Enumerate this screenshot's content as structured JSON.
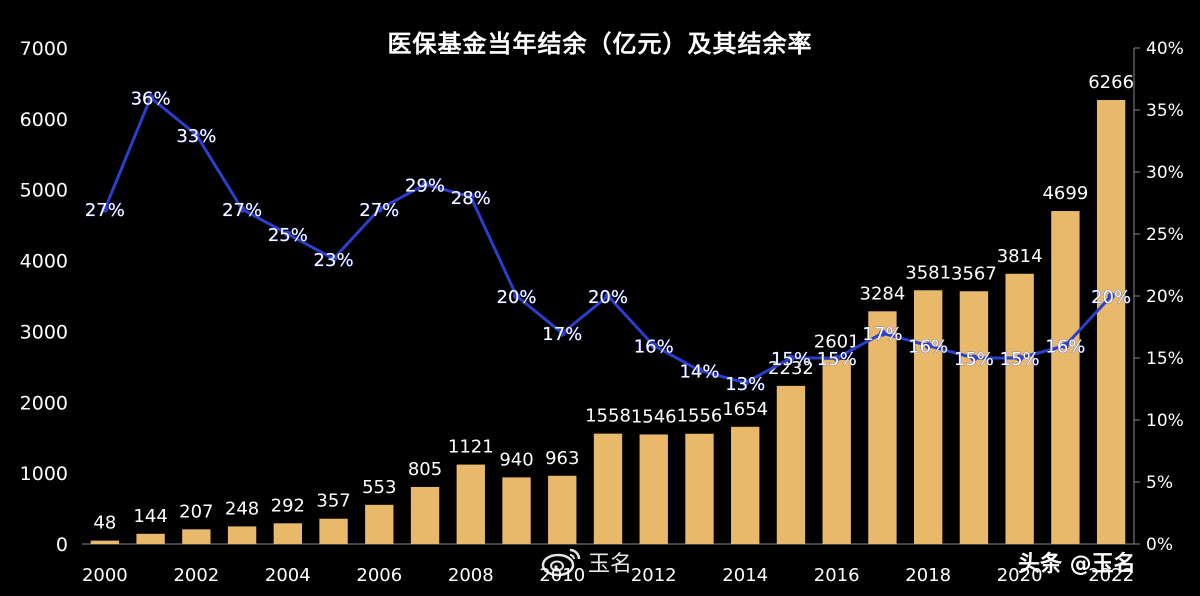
{
  "chart_data": {
    "type": "bar",
    "title": "医保基金当年结余（亿元）及其结余率",
    "categories": [
      "2000",
      "2001",
      "2002",
      "2003",
      "2004",
      "2005",
      "2006",
      "2007",
      "2008",
      "2009",
      "2010",
      "2011",
      "2012",
      "2013",
      "2014",
      "2015",
      "2016",
      "2017",
      "2018",
      "2019",
      "2020",
      "2021",
      "2022"
    ],
    "x_tick_labels": [
      "2000",
      "2002",
      "2004",
      "2006",
      "2008",
      "2010",
      "2012",
      "2014",
      "2016",
      "2018",
      "2020",
      "2022"
    ],
    "series": [
      {
        "type": "bar",
        "axis": "left",
        "values": [
          48,
          144,
          207,
          248,
          292,
          357,
          553,
          805,
          1121,
          940,
          963,
          1558,
          1546,
          1556,
          1654,
          2232,
          2601,
          3284,
          3581,
          3567,
          3814,
          4699,
          6266
        ],
        "labels": [
          "48",
          "144",
          "207",
          "248",
          "292",
          "357",
          "553",
          "805",
          "1121",
          "940",
          "963",
          "1558",
          "1546",
          "1556",
          "1654",
          "2232",
          "2601",
          "3284",
          "3581",
          "3567",
          "3814",
          "4699",
          "6266"
        ],
        "color": "#E8B96B"
      },
      {
        "type": "line",
        "axis": "right",
        "values": [
          27,
          36,
          33,
          27,
          25,
          23,
          27,
          29,
          28,
          20,
          17,
          20,
          16,
          14,
          13,
          15,
          15,
          17,
          16,
          15,
          15,
          16,
          20
        ],
        "labels": [
          "27%",
          "36%",
          "33%",
          "27%",
          "25%",
          "23%",
          "27%",
          "29%",
          "28%",
          "20%",
          "17%",
          "20%",
          "16%",
          "14%",
          "13%",
          "15%",
          "15%",
          "17%",
          "16%",
          "15%",
          "15%",
          "16%",
          "20%"
        ],
        "color": "#2B3FCC"
      }
    ],
    "y_left": {
      "range": [
        0,
        7000
      ],
      "ticks": [
        "0",
        "1000",
        "2000",
        "3000",
        "4000",
        "5000",
        "6000",
        "7000"
      ]
    },
    "y_right": {
      "range": [
        0,
        40
      ],
      "ticks": [
        "0%",
        "5%",
        "10%",
        "15%",
        "20%",
        "25%",
        "30%",
        "35%",
        "40%"
      ]
    },
    "grid": false,
    "legend": "none"
  },
  "watermarks": {
    "left": "玉名",
    "right": "头条 @玉名"
  },
  "colors": {
    "background": "#000000",
    "bar": "#E8B96B",
    "line": "#2B3FCC"
  }
}
